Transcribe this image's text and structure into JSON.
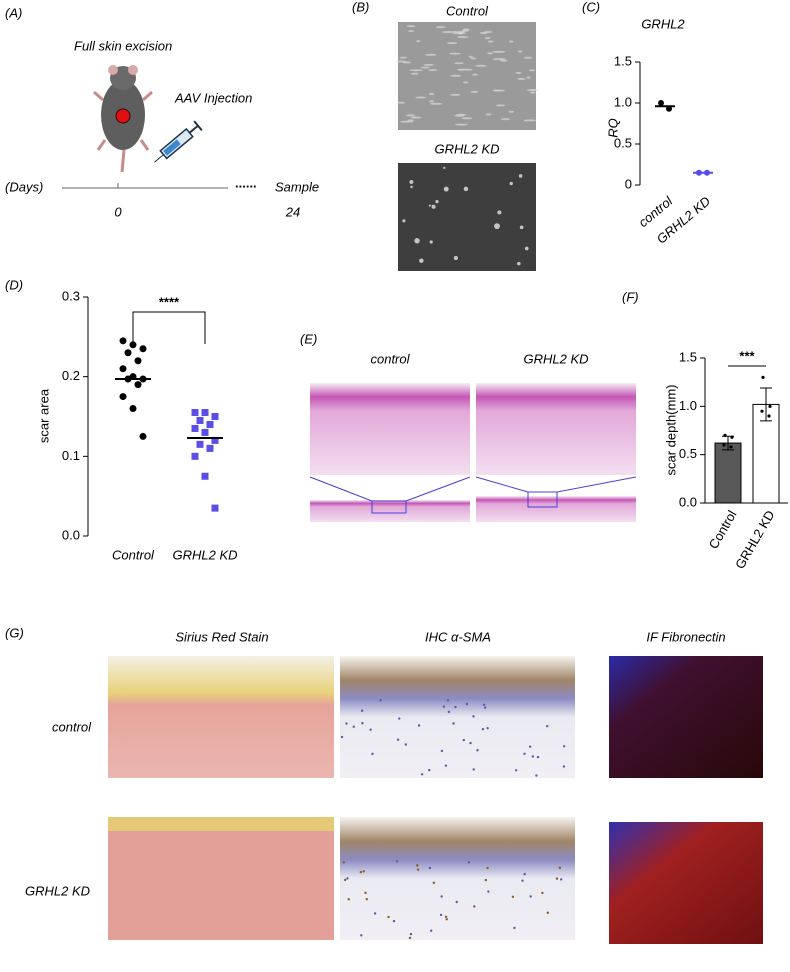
{
  "panel_labels": [
    "(A)",
    "(B)",
    "(C)",
    "(D)",
    "(E)",
    "(F)",
    "(G)"
  ],
  "panel_a": {
    "step1": "Full skin excision",
    "step2": "AAV Injection",
    "axis_label": "(Days)",
    "ellipsis": "......",
    "end_label": "Sample",
    "start_day": "0",
    "end_day": "24"
  },
  "panel_b": {
    "top": "Control",
    "bottom": "GRHL2 KD"
  },
  "panel_e": {
    "left": "control",
    "right": "GRHL2 KD"
  },
  "panel_g": {
    "columns": [
      "Sirius Red Stain",
      "IHC α-SMA",
      "IF Fibronectin"
    ],
    "rows": [
      "control",
      "GRHL2 KD"
    ]
  },
  "chart_data": [
    {
      "type": "dot",
      "title": "GRHL2",
      "y_label": "RQ",
      "categories": [
        "control",
        "GRHL2 KD"
      ],
      "points": [
        [
          1.0,
          0.93
        ],
        [
          0.15,
          0.15
        ]
      ],
      "means": [
        0.96,
        0.15
      ],
      "colors": [
        "#000000",
        "#5b4de8"
      ],
      "markers": [
        "circle",
        "circle"
      ],
      "ylim": [
        0,
        1.5
      ],
      "yticks": [
        0,
        0.5,
        {
          "value": 1,
          "label": "1.0"
        },
        1.5
      ]
    },
    {
      "type": "dot",
      "y_label": "scar area",
      "categories": [
        "Control",
        "GRHL2 KD"
      ],
      "points": [
        [
          0.245,
          0.24,
          0.235,
          0.23,
          0.22,
          0.21,
          0.2,
          0.197,
          0.197,
          0.19,
          0.175,
          0.16,
          0.125
        ],
        [
          0.155,
          0.155,
          0.15,
          0.145,
          0.14,
          0.135,
          0.13,
          0.12,
          0.115,
          0.11,
          0.1,
          0.075,
          0.035
        ]
      ],
      "means": [
        0.197,
        0.123
      ],
      "colors": [
        "#000000",
        "#5b4de8"
      ],
      "markers": [
        "circle",
        "square"
      ],
      "significance": "****",
      "ylim": [
        0,
        0.3
      ],
      "yticks": [
        {
          "value": 0,
          "label": "0.0"
        },
        0.1,
        0.2,
        0.3
      ]
    },
    {
      "type": "bar",
      "y_label": "scar depth(mm)",
      "categories": [
        "Control",
        "GRHL2 KD"
      ],
      "values": [
        0.62,
        1.02
      ],
      "errors": [
        0.07,
        0.17
      ],
      "colors": [
        "#595959",
        "#ffffff"
      ],
      "points": [
        [
          0.7,
          0.68,
          0.6,
          0.58
        ],
        [
          1.3,
          1.0,
          0.95,
          0.9
        ]
      ],
      "significance": "***",
      "ylim": [
        0,
        1.5
      ],
      "yticks": [
        {
          "value": 0,
          "label": "0.0"
        },
        0.5,
        {
          "value": 1,
          "label": "1.0"
        },
        1.5
      ]
    }
  ]
}
